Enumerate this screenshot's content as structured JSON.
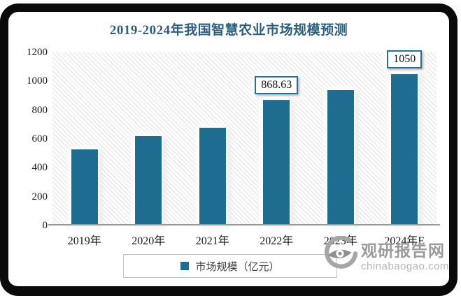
{
  "chart_data": {
    "type": "bar",
    "title": "2019-2024年我国智慧农业市场规模预测",
    "categories": [
      "2019年",
      "2020年",
      "2021年",
      "2022年",
      "2023年",
      "2024年E"
    ],
    "values": [
      525,
      617,
      678,
      868.63,
      937,
      1050
    ],
    "data_labels": [
      "",
      "",
      "",
      "868.63",
      "",
      "1050"
    ],
    "series_name": "市场规模（亿元）",
    "xlabel": "",
    "ylabel": "",
    "ylim": [
      0,
      1200
    ],
    "yticks": [
      0,
      200,
      400,
      600,
      800,
      1000,
      1200
    ],
    "grid": false,
    "legend_position": "bottom",
    "plot_background": "diagonal-hatch"
  },
  "legend": {
    "label": "市场规模（亿元）"
  },
  "watermark": {
    "name": "观研报告网",
    "domain": "chinabaogao.com"
  },
  "colors": {
    "bar": "#1E6C90",
    "title": "#2E5F7C",
    "labelborder": "#2D7096",
    "axis": "#9A9A9A",
    "legendborder": "#C6C6C6",
    "legendtext": "#3F3F3F",
    "wmname": "#9B9B9B",
    "wmdomain": "#B4B4B4",
    "frame": "#0A0A0A"
  }
}
